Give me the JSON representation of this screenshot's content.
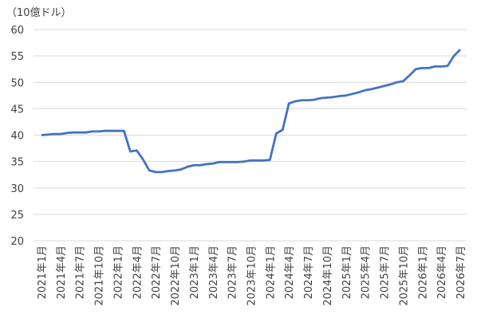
{
  "chart_data": {
    "type": "line",
    "y_axis_label": "（10億ドル）",
    "categories": [
      "2021年1月",
      null,
      null,
      "2021年4月",
      null,
      null,
      "2021年7月",
      null,
      null,
      "2021年10月",
      null,
      null,
      "2022年1月",
      null,
      null,
      "2022年4月",
      null,
      null,
      "2022年7月",
      null,
      null,
      "2022年10月",
      null,
      null,
      "2023年1月",
      null,
      null,
      "2023年4月",
      null,
      null,
      "2023年7月",
      null,
      null,
      "2023年10月",
      null,
      null,
      "2024年1月",
      null,
      null,
      "2024年4月",
      null,
      null,
      "2024年7月",
      null,
      null,
      "2024年10月",
      null,
      null,
      "2025年1月",
      null,
      null,
      "2025年4月",
      null,
      null,
      "2025年7月",
      null,
      null,
      "2025年10月",
      null,
      null,
      "2026年1月",
      null,
      null,
      "2026年4月",
      null,
      null,
      "2026年7月"
    ],
    "series": [
      {
        "color": "#4472c4",
        "values": [
          40.0,
          40.1,
          40.2,
          40.2,
          40.4,
          40.5,
          40.5,
          40.5,
          40.7,
          40.7,
          40.8,
          40.8,
          40.8,
          40.8,
          36.9,
          37.1,
          35.4,
          33.3,
          33.0,
          33.0,
          33.2,
          33.3,
          33.5,
          34.0,
          34.3,
          34.3,
          34.5,
          34.6,
          34.9,
          34.9,
          34.9,
          34.9,
          35.0,
          35.2,
          35.2,
          35.2,
          35.3,
          40.3,
          41.0,
          46.0,
          46.4,
          46.6,
          46.6,
          46.7,
          47.0,
          47.1,
          47.2,
          47.4,
          47.5,
          47.8,
          48.1,
          48.5,
          48.7,
          49.0,
          49.3,
          49.6,
          50.0,
          50.2,
          51.3,
          52.5,
          52.7,
          52.7,
          53.0,
          53.0,
          53.1,
          55.0,
          56.2
        ]
      }
    ],
    "ylim": [
      20,
      60
    ],
    "yticks": [
      20,
      25,
      30,
      35,
      40,
      45,
      50,
      55,
      60
    ],
    "grid": true
  }
}
